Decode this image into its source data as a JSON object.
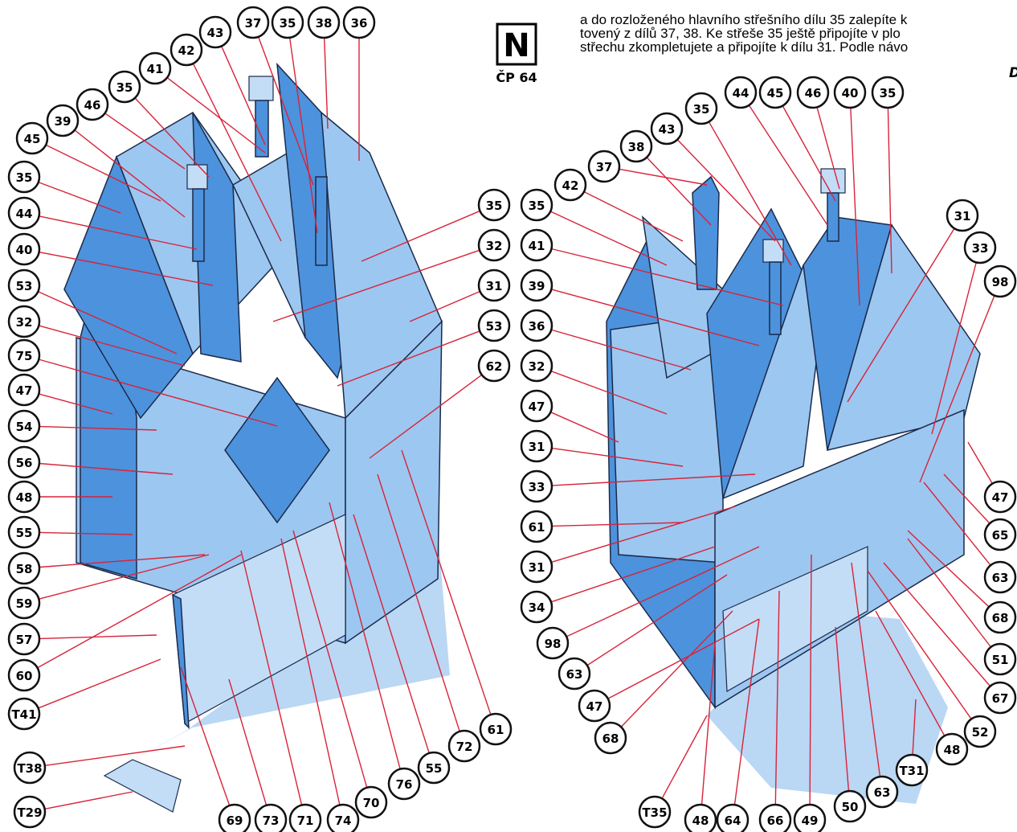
{
  "header": {
    "lines": [
      "a do rozloženého hlavního střešního dílu 35 zalepíte k",
      "tovený z dílů 37, 38. Ke střeše 35 ještě připojíte v plo",
      "střechu zkompletujete a připojíte k dílu 31. Podle návo"
    ],
    "corner": "D"
  },
  "badge": {
    "letter": "N",
    "caption": "ČP 64"
  },
  "callouts": [
    "43",
    "37",
    "35",
    "38",
    "36",
    "42",
    "41",
    "35",
    "46",
    "39",
    "45",
    "35",
    "44",
    "40",
    "53",
    "32",
    "75",
    "47",
    "54",
    "56",
    "48",
    "55",
    "58",
    "59",
    "57",
    "60",
    "T41",
    "T38",
    "T29",
    "69",
    "73",
    "71",
    "74",
    "70",
    "76",
    "55",
    "72",
    "61",
    "35",
    "32",
    "31",
    "53",
    "62",
    "35",
    "41",
    "39",
    "36",
    "32",
    "47",
    "31",
    "33",
    "61",
    "31",
    "34",
    "98",
    "63",
    "47",
    "68",
    "35",
    "44",
    "45",
    "46",
    "40",
    "35",
    "43",
    "38",
    "37",
    "42",
    "31",
    "33",
    "98",
    "47",
    "65",
    "63",
    "68",
    "51",
    "67",
    "52",
    "48",
    "T31",
    "63",
    "50",
    "49",
    "66",
    "64",
    "48",
    "T35"
  ]
}
